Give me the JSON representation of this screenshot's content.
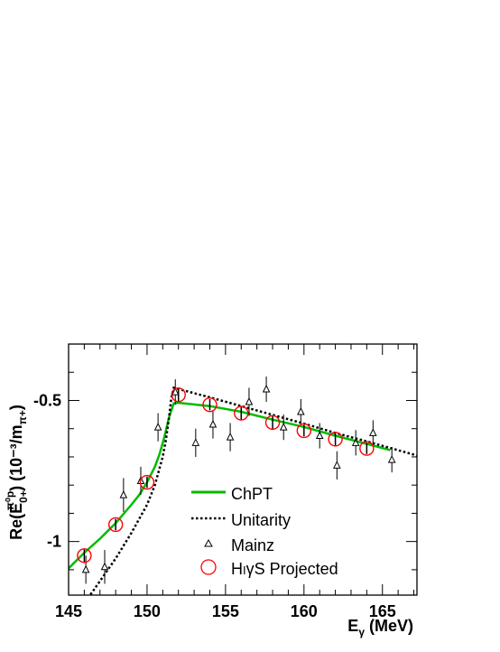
{
  "chart_data": {
    "type": "scatter",
    "xlabel_main": "E",
    "xlabel_sub": "γ",
    "xlabel_unit": " (MeV)",
    "ylabel_prefix": "Re(E",
    "ylabel_sup": "π⁰p",
    "ylabel_sub": "0+",
    "ylabel_suffix": ") (10⁻³/m",
    "ylabel_unit_sub": "π+",
    "ylabel_end": ")",
    "xlim": [
      145,
      167.2
    ],
    "ylim": [
      -1.19,
      -0.3
    ],
    "xticks": [
      145,
      150,
      155,
      160,
      165
    ],
    "xtick_labels": [
      "145",
      "150",
      "155",
      "160",
      "165"
    ],
    "yticks": [
      -0.5,
      -1
    ],
    "ytick_labels": [
      "-0.5",
      "-1"
    ],
    "legend_position": "center-right",
    "series": [
      {
        "name": "ChPT",
        "kind": "line",
        "color": "#00bb00",
        "x": [
          145,
          146,
          147,
          148,
          149,
          149.5,
          150,
          150.5,
          150.8,
          151.1,
          151.4,
          151.7,
          152,
          154,
          156,
          158,
          160,
          162,
          164,
          165.5
        ],
        "y": [
          -1.095,
          -1.04,
          -0.99,
          -0.935,
          -0.87,
          -0.835,
          -0.79,
          -0.735,
          -0.69,
          -0.63,
          -0.56,
          -0.51,
          -0.508,
          -0.52,
          -0.54,
          -0.568,
          -0.594,
          -0.625,
          -0.654,
          -0.676
        ]
      },
      {
        "name": "Unitarity",
        "kind": "dotted-line",
        "color": "#000000",
        "x": [
          145,
          146.5,
          148,
          149,
          150,
          150.5,
          151,
          151.2,
          151.4,
          151.55,
          151.7,
          154,
          156,
          158,
          160,
          162,
          164,
          167.2
        ],
        "y": [
          -1.29,
          -1.18,
          -1.06,
          -0.97,
          -0.87,
          -0.8,
          -0.7,
          -0.64,
          -0.56,
          -0.49,
          -0.455,
          -0.489,
          -0.52,
          -0.551,
          -0.582,
          -0.615,
          -0.645,
          -0.695
        ]
      },
      {
        "name": "Mainz",
        "kind": "triangle-markers",
        "color": "#000000",
        "x": [
          146.1,
          147.3,
          148.5,
          149.6,
          150.7,
          151.8,
          153.1,
          154.2,
          155.3,
          156.5,
          157.6,
          158.7,
          159.8,
          161.0,
          162.1,
          163.3,
          164.4,
          165.6
        ],
        "y": [
          -1.1,
          -1.09,
          -0.835,
          -0.785,
          -0.595,
          -0.47,
          -0.65,
          -0.585,
          -0.63,
          -0.505,
          -0.46,
          -0.595,
          -0.54,
          -0.625,
          -0.73,
          -0.65,
          -0.615,
          -0.71
        ],
        "err": [
          0.05,
          0.06,
          0.06,
          0.05,
          0.05,
          0.045,
          0.05,
          0.05,
          0.05,
          0.05,
          0.045,
          0.045,
          0.045,
          0.045,
          0.05,
          0.045,
          0.045,
          0.045
        ]
      },
      {
        "name": "HIγS Projected",
        "label_prefix": "H",
        "label_letter": "I",
        "label_suffix": "γS Projected",
        "kind": "circle-markers",
        "color": "#ff0000",
        "x": [
          146,
          148,
          150,
          152,
          154,
          156,
          158,
          160,
          162,
          164
        ],
        "y": [
          -1.05,
          -0.94,
          -0.79,
          -0.48,
          -0.515,
          -0.545,
          -0.578,
          -0.607,
          -0.637,
          -0.67
        ],
        "err": [
          0.025,
          0.02,
          0.02,
          0.025,
          0.02,
          0.025,
          0.025,
          0.02,
          0.025,
          0.02
        ]
      }
    ]
  }
}
